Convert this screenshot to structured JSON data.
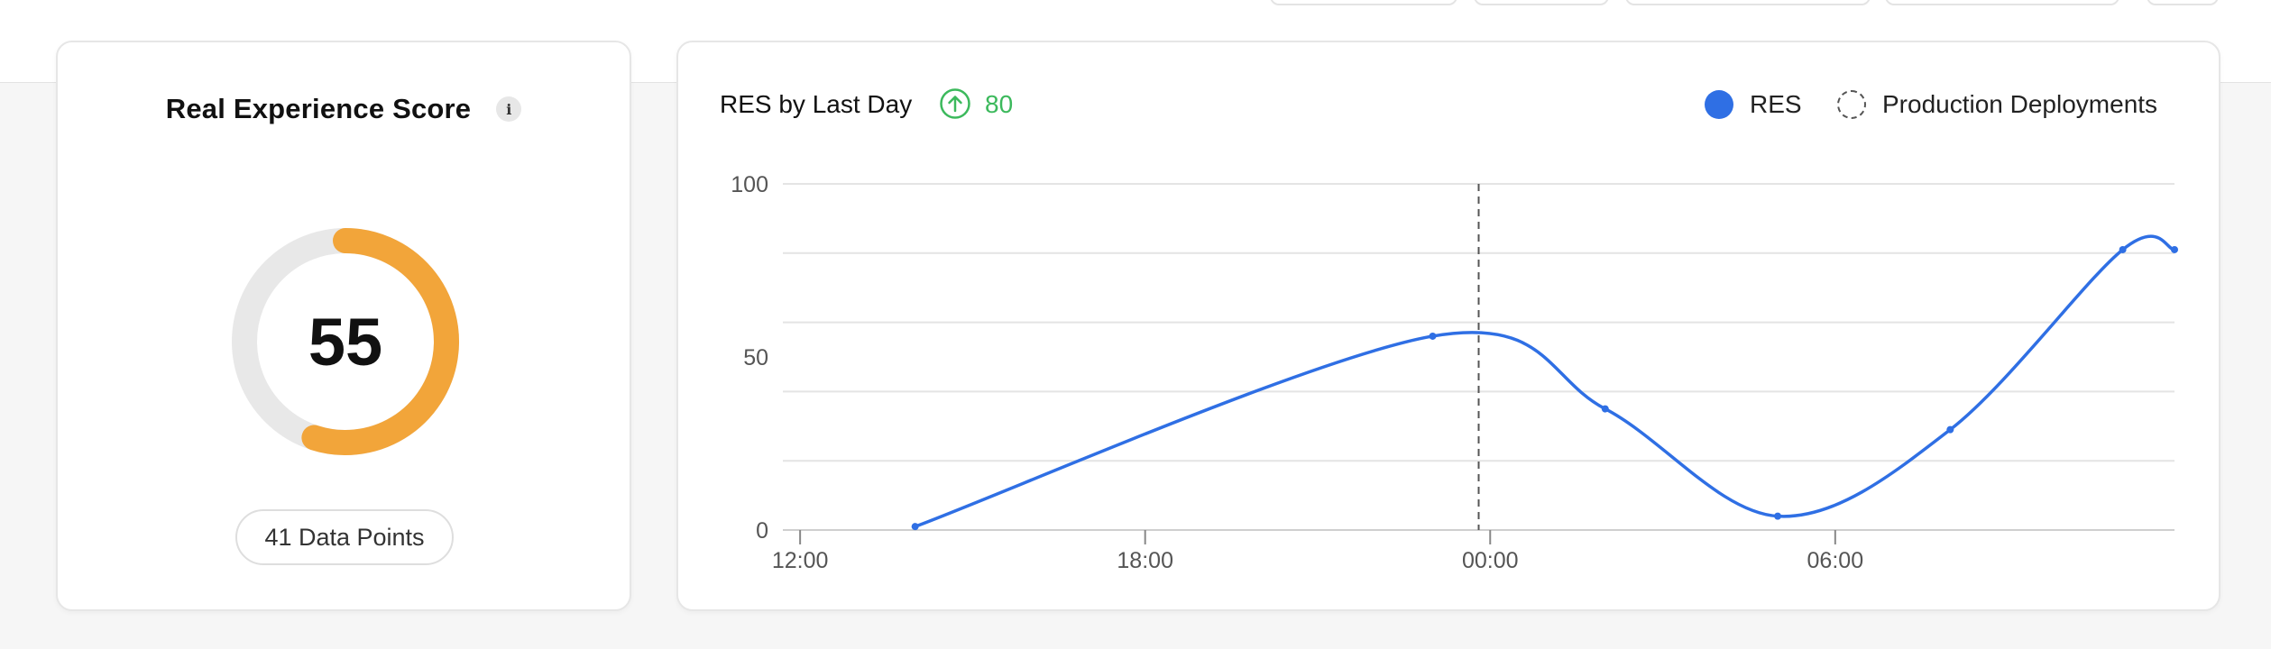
{
  "score_card": {
    "title": "Real Experience Score",
    "info_icon": "info-icon",
    "info_glyph": "i",
    "score": 55,
    "score_max": 100,
    "gauge_color": "#f2a53a",
    "track_color": "#e8e8e8",
    "data_points_label": "41 Data Points"
  },
  "chart_card": {
    "title": "RES by Last Day",
    "trend_icon": "arrow-up-circle-icon",
    "trend_value": "80",
    "trend_color": "#3cb95c",
    "legend": [
      {
        "label": "RES",
        "color": "#2f6fe4",
        "icon": "filled-dot-icon"
      },
      {
        "label": "Production Deployments",
        "color": "#555555",
        "icon": "dashed-circle-icon"
      }
    ]
  },
  "chart_data": {
    "type": "line",
    "title": "RES by Last Day",
    "xlabel": "",
    "ylabel": "",
    "x_ticks": [
      "12:00",
      "18:00",
      "00:00",
      "06:00"
    ],
    "x_tick_hours": [
      12,
      18,
      24,
      30
    ],
    "xlim_hours": [
      11.7,
      35.9
    ],
    "ylim": [
      0,
      100
    ],
    "y_ticks": [
      0,
      50,
      100
    ],
    "y_gridlines": [
      0,
      20,
      40,
      60,
      80,
      100
    ],
    "series": [
      {
        "name": "RES",
        "color": "#2f6fe4",
        "x_hours": [
          14,
          23,
          26,
          29,
          32,
          35,
          35.9
        ],
        "values": [
          1,
          56,
          35,
          4,
          29,
          81,
          81
        ]
      }
    ],
    "deployments_hours": [
      23.8
    ],
    "legend_position": "top-right",
    "grid": true
  }
}
